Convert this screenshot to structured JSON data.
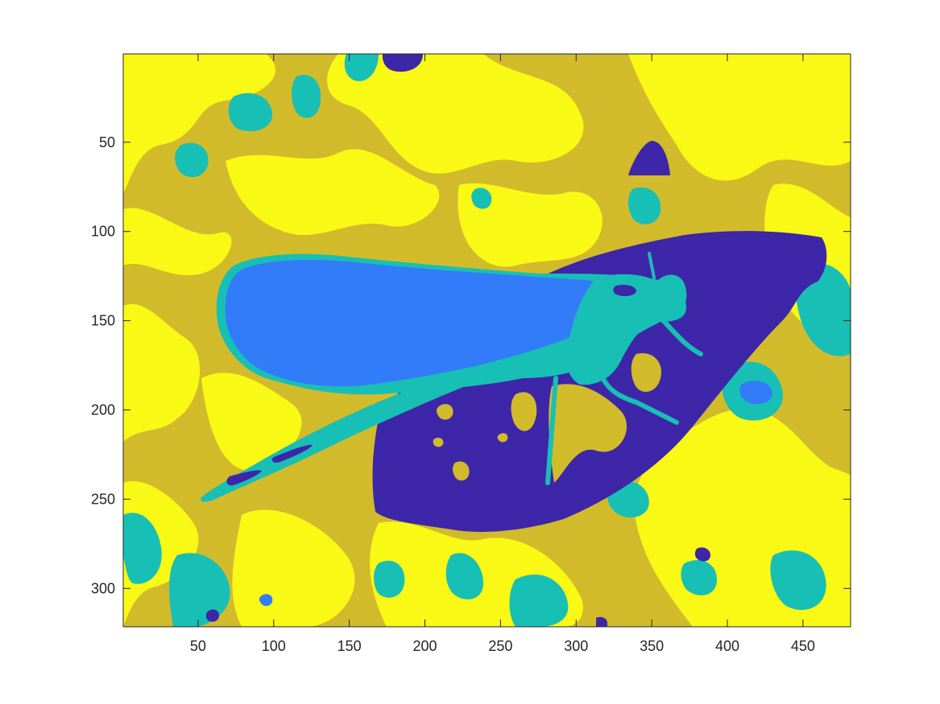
{
  "figure": {
    "title": "",
    "xlabel": "",
    "ylabel": ""
  },
  "chart_data": {
    "type": "heatmap",
    "description_kind": "segmented-image",
    "x_range": [
      1,
      481
    ],
    "y_range": [
      1,
      321
    ],
    "y_axis_direction": "reversed",
    "x_ticks": [
      50,
      100,
      150,
      200,
      250,
      300,
      350,
      400,
      450
    ],
    "y_ticks": [
      50,
      100,
      150,
      200,
      250,
      300
    ],
    "x_tick_labels": [
      "50",
      "100",
      "150",
      "200",
      "250",
      "300",
      "350",
      "400",
      "450"
    ],
    "y_tick_labels": [
      "50",
      "100",
      "150",
      "200",
      "250",
      "300"
    ],
    "grid": false,
    "legend": "none",
    "segment_colors": {
      "level_1": "#3e26a8",
      "level_2": "#327bf9",
      "level_3": "#18bfb5",
      "level_4": "#d2bb2a",
      "level_5": "#f9f915"
    },
    "frame_color": "#262626"
  }
}
